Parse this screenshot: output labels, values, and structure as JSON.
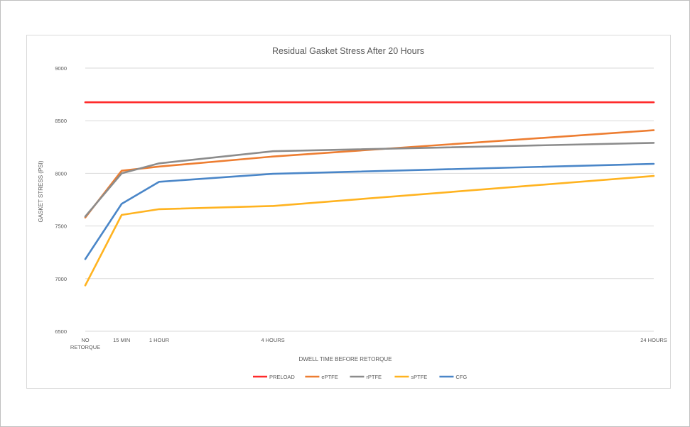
{
  "chart_data": {
    "type": "line",
    "title": "Residual Gasket Stress After 20 Hours",
    "xlabel": "DWELL TIME BEFORE RETORQUE",
    "ylabel": "GASKET STRESS (PSI)",
    "ylim": [
      6500,
      9000
    ],
    "yticks": [
      6500,
      7000,
      7500,
      8000,
      8500,
      9000
    ],
    "x": [
      0,
      0.25,
      1,
      4,
      24
    ],
    "xlim": [
      0,
      24
    ],
    "categories": [
      [
        "NO",
        "RETORQUE"
      ],
      [
        "15 MIN"
      ],
      [
        "1 HOUR"
      ],
      [
        "4 HOURS"
      ],
      [
        "24 HOURS"
      ]
    ],
    "grid": true,
    "legend_position": "bottom",
    "series": [
      {
        "name": "PRELOAD",
        "color": "#ff2a2a",
        "values": [
          8675,
          8675,
          8675,
          8675,
          8675
        ]
      },
      {
        "name": "ePTFE",
        "color": "#ed7d31",
        "values": [
          7580,
          8025,
          8065,
          8160,
          8410
        ]
      },
      {
        "name": "rPTFE",
        "color": "#8c8c8c",
        "values": [
          7590,
          8000,
          8095,
          8210,
          8290
        ]
      },
      {
        "name": "sPTFE",
        "color": "#ffb320",
        "values": [
          6935,
          7605,
          7660,
          7690,
          7975
        ]
      },
      {
        "name": "CFG",
        "color": "#4a86c8",
        "values": [
          7185,
          7710,
          7920,
          7995,
          8090
        ]
      }
    ]
  }
}
